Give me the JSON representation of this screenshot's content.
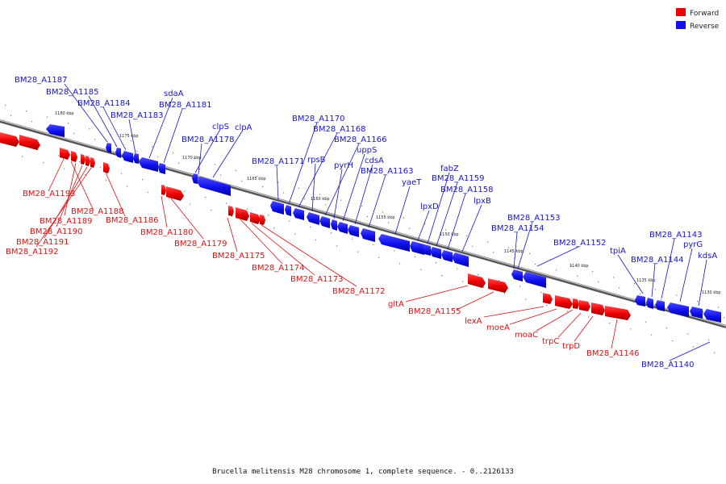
{
  "caption": "Brucella melitensis M28 chromosome 1, complete sequence. - 0..2126133",
  "legend": [
    {
      "label": "Forward",
      "color": "#ee0000"
    },
    {
      "label": "Reverse",
      "color": "#1010ee"
    }
  ],
  "colors": {
    "forward": "#ee0000",
    "reverse": "#1010ee",
    "axis": "#888888"
  },
  "ticks": [
    "1180 kbp",
    "1175 kbp",
    "1170 kbp",
    "1165 kbp",
    "1160 kbp",
    "1155 kbp",
    "1150 kbp",
    "1145 kbp",
    "1140 kbp",
    "1135 kbp",
    "1130 kbp"
  ],
  "reverse_labels": [
    "BM28_A1187",
    "BM28_A1185",
    "BM28_A1184",
    "BM28_A1183",
    "sdaA",
    "BM28_A1181",
    "clpS",
    "clpA",
    "BM28_A1178",
    "BM28_A1171",
    "BM28_A1170",
    "BM28_A1168",
    "rpsB",
    "BM28_A1166",
    "pyrH",
    "uppS",
    "cdsA",
    "BM28_A1163",
    "yaeT",
    "lpxD",
    "fabZ",
    "BM28_A1159",
    "BM28_A1158",
    "lpxB",
    "BM28_A1153",
    "BM28_A1154",
    "BM28_A1152",
    "tpiA",
    "BM28_A1144",
    "BM28_A1143",
    "pyrG",
    "kdsA",
    "BM28_A1140"
  ],
  "forward_labels": [
    "BM28_A1193",
    "BM28_A1188",
    "BM28_A1189",
    "BM28_A1186",
    "BM28_A1190",
    "BM28_A1191",
    "BM28_A1192",
    "BM28_A1180",
    "BM28_A1179",
    "BM28_A1175",
    "BM28_A1174",
    "BM28_A1173",
    "BM28_A1172",
    "gltA",
    "BM28_A1155",
    "lexA",
    "moeA",
    "moaC",
    "trpC",
    "trpD",
    "BM28_A1146"
  ]
}
